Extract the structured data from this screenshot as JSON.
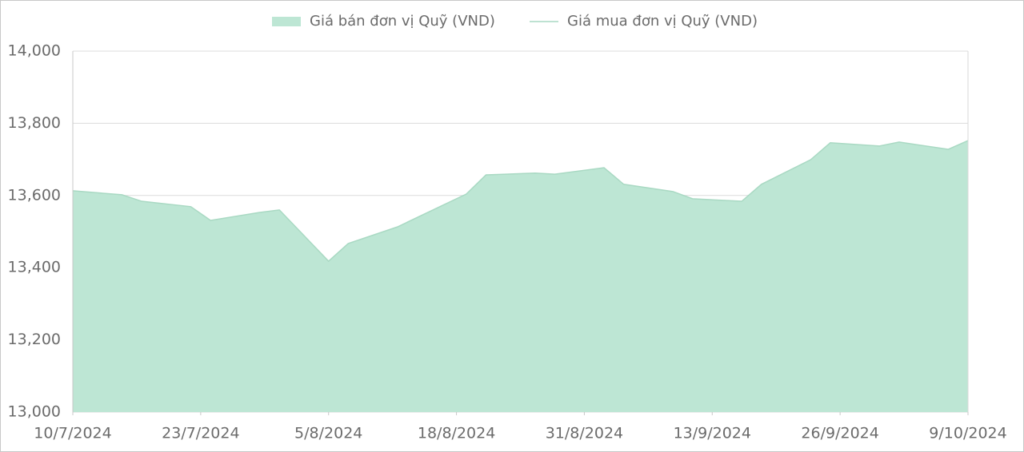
{
  "chart_data": {
    "type": "area",
    "x": [
      "2024-07-10",
      "2024-07-15",
      "2024-07-17",
      "2024-07-22",
      "2024-07-24",
      "2024-07-29",
      "2024-07-31",
      "2024-08-05",
      "2024-08-07",
      "2024-08-12",
      "2024-08-19",
      "2024-08-21",
      "2024-08-26",
      "2024-08-28",
      "2024-09-02",
      "2024-09-04",
      "2024-09-09",
      "2024-09-11",
      "2024-09-16",
      "2024-09-18",
      "2024-09-23",
      "2024-09-25",
      "2024-09-30",
      "2024-10-02",
      "2024-10-07",
      "2024-10-09"
    ],
    "series": [
      {
        "name": "Giá bán đơn vị Quỹ (VND)",
        "type": "area",
        "color": "#bde6d4",
        "values": [
          13613,
          13602,
          13584,
          13569,
          13531,
          13553,
          13560,
          13418,
          13467,
          13513,
          13604,
          13657,
          13662,
          13659,
          13677,
          13631,
          13611,
          13591,
          13584,
          13631,
          13699,
          13746,
          13737,
          13748,
          13728,
          13752
        ]
      },
      {
        "name": "Giá mua đơn vị Quỹ (VND)",
        "type": "line",
        "color": "#a9d9c3",
        "values": [
          13613,
          13602,
          13584,
          13569,
          13531,
          13553,
          13560,
          13418,
          13467,
          13513,
          13604,
          13657,
          13662,
          13659,
          13677,
          13631,
          13611,
          13591,
          13584,
          13631,
          13699,
          13746,
          13737,
          13748,
          13728,
          13752
        ]
      }
    ],
    "xlim": [
      "2024-07-10",
      "2024-10-09"
    ],
    "xticks": [
      {
        "value": "2024-07-10",
        "label": "10/7/2024"
      },
      {
        "value": "2024-07-23",
        "label": "23/7/2024"
      },
      {
        "value": "2024-08-05",
        "label": "5/8/2024"
      },
      {
        "value": "2024-08-18",
        "label": "18/8/2024"
      },
      {
        "value": "2024-08-31",
        "label": "31/8/2024"
      },
      {
        "value": "2024-09-13",
        "label": "13/9/2024"
      },
      {
        "value": "2024-09-26",
        "label": "26/9/2024"
      },
      {
        "value": "2024-10-09",
        "label": "9/10/2024"
      }
    ],
    "ylim": [
      13000,
      14000
    ],
    "yticks": [
      {
        "value": 13000,
        "label": "13,000"
      },
      {
        "value": 13200,
        "label": "13,200"
      },
      {
        "value": 13400,
        "label": "13,400"
      },
      {
        "value": 13600,
        "label": "13,600"
      },
      {
        "value": 13800,
        "label": "13,800"
      },
      {
        "value": 14000,
        "label": "14,000"
      }
    ],
    "grid": true,
    "legend": "top"
  }
}
